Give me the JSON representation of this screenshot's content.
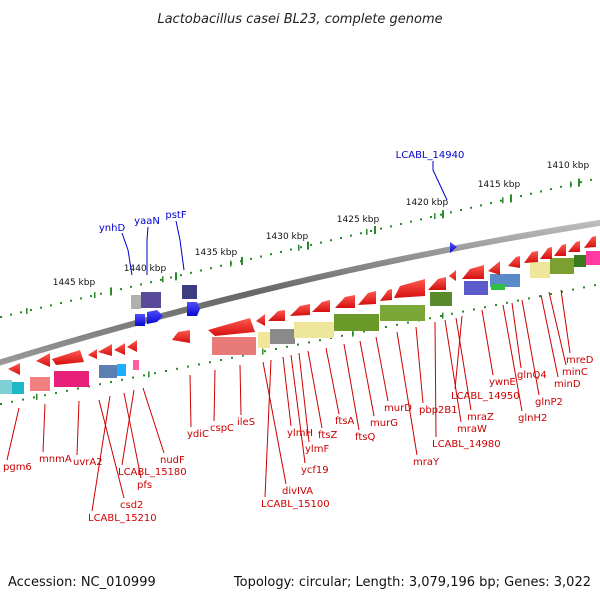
{
  "title": "Lactobacillus casei BL23, complete genome",
  "footer": {
    "accession": "Accession: NC_010999",
    "topology": "Topology: circular; Length: 3,079,196 bp; Genes: 3,022"
  },
  "scale_labels": [
    "1410 kbp",
    "1415 kbp",
    "1420 kbp",
    "1425 kbp",
    "1430 kbp",
    "1435 kbp",
    "1440 kbp",
    "1445 kbp"
  ],
  "blue_genes": [
    "LCABL_14940",
    "ynhD",
    "yaaN",
    "pstF"
  ],
  "red_genes": [
    "pgm6",
    "mnmA",
    "uvrA2",
    "csd2",
    "LCABL_15210",
    "pfs",
    "LCABL_15180",
    "nudF",
    "ydiC",
    "cspC",
    "ileS",
    "divIVA",
    "LCABL_15100",
    "ylmH",
    "ycf19",
    "ylmF",
    "ftsZ",
    "ftsA",
    "ftsQ",
    "murG",
    "murD",
    "mraY",
    "pbp2B1",
    "LCABL_14980",
    "mraW",
    "mraZ",
    "LCABL_14950",
    "ywnE",
    "glnH2",
    "glnQ4",
    "glnP2",
    "minD",
    "minC",
    "mreD"
  ],
  "colors": {
    "gene_red": "#e8201c",
    "gene_blue": "#1a1aee",
    "label_red": "#cc0000",
    "label_blue": "#0000cc",
    "tick_green": "#2a8a2a",
    "backbone": "#777777"
  }
}
